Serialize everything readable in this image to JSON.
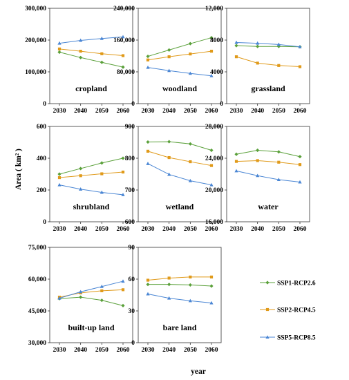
{
  "xlabel": "year",
  "ylabel": "Area ( km² )",
  "legend": [
    {
      "name": "SSP1-RCP2.6",
      "color": "#5aa03a",
      "marker": "diamond"
    },
    {
      "name": "SSP2-RCP4.5",
      "color": "#e09a1a",
      "marker": "square"
    },
    {
      "name": "SSP5-RCP8.5",
      "color": "#4a86d4",
      "marker": "triangle"
    }
  ],
  "chart_data": [
    {
      "type": "line",
      "title": "cropland",
      "x": [
        2030,
        2040,
        2050,
        2060
      ],
      "ylim": [
        0,
        300000
      ],
      "yticks": [
        0,
        100000,
        200000,
        300000
      ],
      "ytick_labels": [
        "0",
        "100,000",
        "200,000",
        "300,000"
      ],
      "series": [
        {
          "name": "SSP1-RCP2.6",
          "values": [
            162000,
            145000,
            130000,
            115000
          ]
        },
        {
          "name": "SSP2-RCP4.5",
          "values": [
            172000,
            165000,
            157000,
            151000
          ]
        },
        {
          "name": "SSP5-RCP8.5",
          "values": [
            190000,
            199000,
            205000,
            210000
          ]
        }
      ]
    },
    {
      "type": "line",
      "title": "woodland",
      "x": [
        2030,
        2040,
        2050,
        2060
      ],
      "ylim": [
        0,
        240000
      ],
      "yticks": [
        0,
        80000,
        160000,
        240000
      ],
      "ytick_labels": [
        "0",
        "80,000",
        "160,000",
        "240,000"
      ],
      "series": [
        {
          "name": "SSP1-RCP2.6",
          "values": [
            119000,
            135000,
            151000,
            166000
          ]
        },
        {
          "name": "SSP2-RCP4.5",
          "values": [
            110000,
            118000,
            125000,
            132000
          ]
        },
        {
          "name": "SSP5-RCP8.5",
          "values": [
            91000,
            83000,
            76000,
            70000
          ]
        }
      ]
    },
    {
      "type": "line",
      "title": "grassland",
      "x": [
        2030,
        2040,
        2050,
        2060
      ],
      "ylim": [
        0,
        12000
      ],
      "yticks": [
        0,
        4000,
        8000,
        12000
      ],
      "ytick_labels": [
        "0",
        "4000",
        "8000",
        "12,000"
      ],
      "series": [
        {
          "name": "SSP1-RCP2.6",
          "values": [
            7300,
            7200,
            7200,
            7150
          ]
        },
        {
          "name": "SSP2-RCP4.5",
          "values": [
            5900,
            5100,
            4800,
            4650
          ]
        },
        {
          "name": "SSP5-RCP8.5",
          "values": [
            7700,
            7600,
            7450,
            7150
          ]
        }
      ]
    },
    {
      "type": "line",
      "title": "shrubland",
      "x": [
        2030,
        2040,
        2050,
        2060
      ],
      "ylim": [
        0,
        600
      ],
      "yticks": [
        0,
        200,
        400,
        600
      ],
      "ytick_labels": [
        "0",
        "200",
        "400",
        "600"
      ],
      "series": [
        {
          "name": "SSP1-RCP2.6",
          "values": [
            300,
            335,
            370,
            400
          ]
        },
        {
          "name": "SSP2-RCP4.5",
          "values": [
            278,
            290,
            302,
            313
          ]
        },
        {
          "name": "SSP5-RCP8.5",
          "values": [
            232,
            205,
            185,
            170
          ]
        }
      ]
    },
    {
      "type": "line",
      "title": "wetland",
      "x": [
        2030,
        2040,
        2050,
        2060
      ],
      "ylim": [
        600,
        900
      ],
      "yticks": [
        600,
        700,
        800,
        900
      ],
      "ytick_labels": [
        "600",
        "700",
        "800",
        "900"
      ],
      "series": [
        {
          "name": "SSP1-RCP2.6",
          "values": [
            851,
            852,
            845,
            825
          ]
        },
        {
          "name": "SSP2-RCP4.5",
          "values": [
            822,
            802,
            789,
            777
          ]
        },
        {
          "name": "SSP5-RCP8.5",
          "values": [
            783,
            749,
            729,
            716
          ]
        }
      ]
    },
    {
      "type": "line",
      "title": "water",
      "x": [
        2030,
        2040,
        2050,
        2060
      ],
      "ylim": [
        16000,
        28000
      ],
      "yticks": [
        16000,
        20000,
        24000,
        28000
      ],
      "ytick_labels": [
        "16,000",
        "20,000",
        "24,000",
        "28,000"
      ],
      "series": [
        {
          "name": "SSP1-RCP2.6",
          "values": [
            24500,
            25000,
            24800,
            24200
          ]
        },
        {
          "name": "SSP2-RCP4.5",
          "values": [
            23600,
            23700,
            23500,
            23200
          ]
        },
        {
          "name": "SSP5-RCP8.5",
          "values": [
            22400,
            21800,
            21300,
            21000
          ]
        }
      ]
    },
    {
      "type": "line",
      "title": "built-up land",
      "x": [
        2030,
        2040,
        2050,
        2060
      ],
      "ylim": [
        30000,
        75000
      ],
      "yticks": [
        30000,
        45000,
        60000,
        75000
      ],
      "ytick_labels": [
        "30,000",
        "45,000",
        "60,000",
        "75,000"
      ],
      "series": [
        {
          "name": "SSP1-RCP2.6",
          "values": [
            50800,
            51500,
            50000,
            47500
          ]
        },
        {
          "name": "SSP2-RCP4.5",
          "values": [
            51500,
            53500,
            54500,
            55000
          ]
        },
        {
          "name": "SSP5-RCP8.5",
          "values": [
            51000,
            54000,
            56500,
            59000
          ]
        }
      ]
    },
    {
      "type": "line",
      "title": "bare land",
      "x": [
        2030,
        2040,
        2050,
        2060
      ],
      "ylim": [
        0,
        90
      ],
      "yticks": [
        0,
        30,
        60,
        90
      ],
      "ytick_labels": [
        "0",
        "30",
        "60",
        "90"
      ],
      "series": [
        {
          "name": "SSP1-RCP2.6",
          "values": [
            55,
            55,
            54.5,
            53.5
          ]
        },
        {
          "name": "SSP2-RCP4.5",
          "values": [
            59,
            61,
            62,
            62
          ]
        },
        {
          "name": "SSP5-RCP8.5",
          "values": [
            46,
            42,
            39.5,
            37.5
          ]
        }
      ]
    }
  ]
}
